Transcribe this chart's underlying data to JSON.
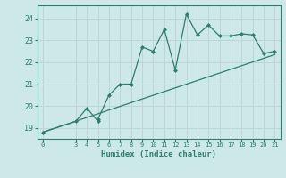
{
  "xlabel": "Humidex (Indice chaleur)",
  "ylabel": "",
  "bg_color": "#cce8e8",
  "grid_color": "#c0d4d4",
  "line_color": "#2e7d6e",
  "x_data": [
    0,
    3,
    4,
    5,
    5,
    6,
    7,
    8,
    9,
    10,
    11,
    12,
    13,
    14,
    15,
    16,
    17,
    18,
    19,
    20,
    21
  ],
  "y_data": [
    18.8,
    19.3,
    19.9,
    19.3,
    19.4,
    20.5,
    21.0,
    21.0,
    22.7,
    22.5,
    23.5,
    21.65,
    24.2,
    23.25,
    23.7,
    23.2,
    23.2,
    23.3,
    23.25,
    22.4,
    22.5
  ],
  "trend_x": [
    0,
    21
  ],
  "trend_y": [
    18.8,
    22.35
  ],
  "xlim": [
    -0.5,
    21.5
  ],
  "ylim": [
    18.5,
    24.6
  ],
  "yticks": [
    19,
    20,
    21,
    22,
    23,
    24
  ],
  "xticks": [
    0,
    3,
    4,
    5,
    6,
    7,
    8,
    9,
    10,
    11,
    12,
    13,
    14,
    15,
    16,
    17,
    18,
    19,
    20,
    21
  ]
}
